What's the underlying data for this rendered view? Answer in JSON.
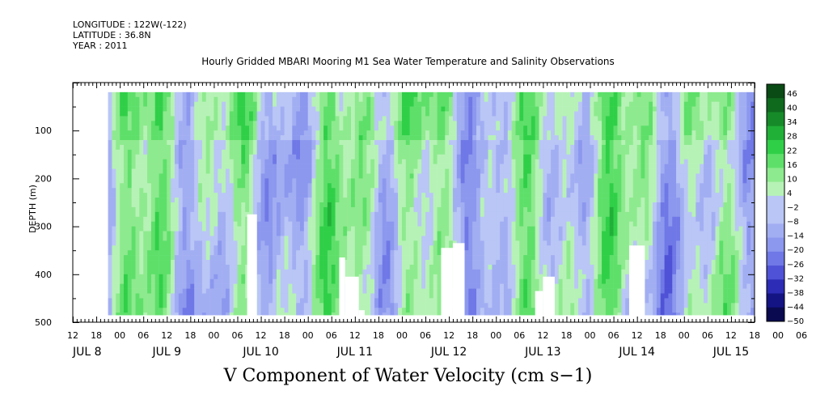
{
  "header": {
    "longitude": "LONGITUDE : 122W(-122)",
    "latitude": "LATITUDE : 36.8N",
    "year": "YEAR : 2011"
  },
  "chart_data": {
    "type": "heatmap",
    "title": "Hourly Gridded MBARI Mooring M1 Sea Water Temperature and Salinity Observations",
    "bottom_title": "V Component of Water Velocity (cm s−1)",
    "ylabel": "DEPTH (m)",
    "y_ticks": [
      "100",
      "200",
      "300",
      "400",
      "500"
    ],
    "ylim": [
      500,
      0
    ],
    "hour_ticks": [
      "12",
      "18",
      "00",
      "06",
      "12",
      "18",
      "00",
      "06",
      "12",
      "18",
      "00",
      "06",
      "12",
      "18",
      "00",
      "06",
      "12",
      "18",
      "00",
      "06",
      "12",
      "18",
      "00",
      "06",
      "12",
      "18",
      "00",
      "06",
      "12",
      "18",
      "00",
      "06"
    ],
    "day_labels": [
      "JUL  8",
      "JUL  9",
      "JUL 10",
      "JUL 11",
      "JUL 12",
      "JUL 13",
      "JUL 14",
      "JUL 15"
    ],
    "day_label_hours": [
      -12,
      12,
      36,
      60,
      84,
      108,
      132,
      156
    ],
    "xlim_hours_from_jul8": [
      -12,
      162
    ],
    "data_depth_range": [
      20,
      485
    ],
    "data_time_range_hours": [
      -3,
      162
    ],
    "colorbar": {
      "labels": [
        "46",
        "40",
        "34",
        "28",
        "22",
        "16",
        "10",
        "4",
        "−2",
        "−8",
        "−14",
        "−20",
        "−26",
        "−32",
        "−38",
        "−44",
        "−50"
      ],
      "min": -50,
      "max": 50
    },
    "palette": {
      "negative": [
        "#b9c6f6",
        "#a2aef2",
        "#8c98ee",
        "#6f78e6",
        "#4f52d6",
        "#2c2cb6",
        "#141484",
        "#0a0a50"
      ],
      "positive": [
        "#b6f2b6",
        "#8eea8e",
        "#5edf6a",
        "#30cf48",
        "#20b038",
        "#168a28",
        "#0f6a1e",
        "#0a4a14"
      ]
    },
    "gaps": [
      {
        "hours": [
          32.5,
          35
        ],
        "depth_top": 275
      },
      {
        "hours": [
          56,
          57.5
        ],
        "depth_top": 365
      },
      {
        "hours": [
          57.5,
          61
        ],
        "depth_top": 405
      },
      {
        "hours": [
          61,
          62.5
        ],
        "depth_top": 475
      },
      {
        "hours": [
          82,
          85
        ],
        "depth_top": 345
      },
      {
        "hours": [
          85,
          88
        ],
        "depth_top": 335
      },
      {
        "hours": [
          106,
          108
        ],
        "depth_top": 435
      },
      {
        "hours": [
          108,
          111
        ],
        "depth_top": 405
      },
      {
        "hours": [
          130,
          134
        ],
        "depth_top": 340
      }
    ]
  }
}
